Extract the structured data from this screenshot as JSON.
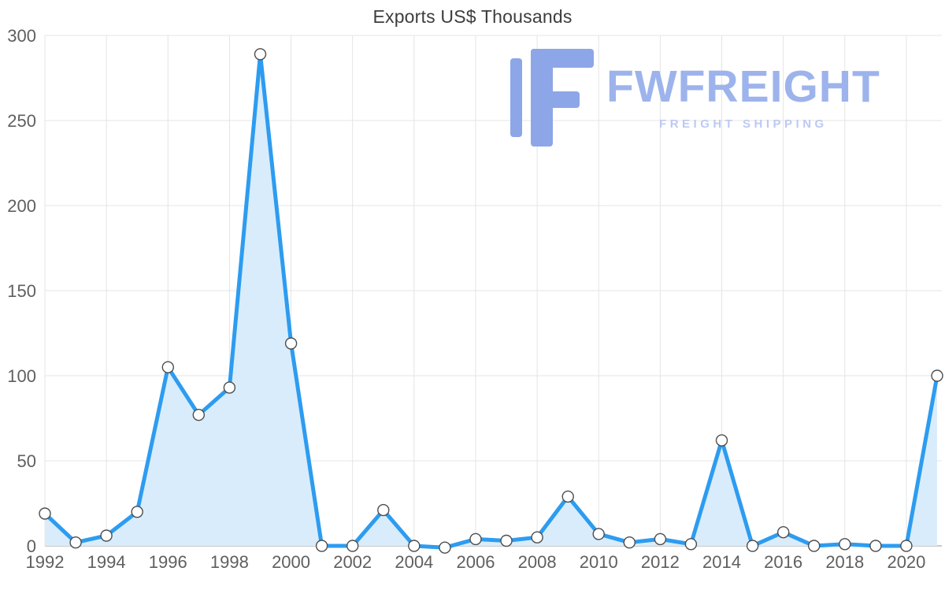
{
  "logo": {
    "name": "FWFREIGHT",
    "tagline": "FREIGHT SHIPPING",
    "glyph_color": "#8da6e8",
    "name_color": "#9db3ec",
    "tagline_color": "#bcc9f3"
  },
  "chart_data": {
    "type": "area",
    "title": "Exports US$ Thousands",
    "x": [
      1992,
      1993,
      1994,
      1995,
      1996,
      1997,
      1998,
      1999,
      2000,
      2001,
      2002,
      2003,
      2004,
      2005,
      2006,
      2007,
      2008,
      2009,
      2010,
      2011,
      2012,
      2013,
      2014,
      2015,
      2016,
      2017,
      2018,
      2019,
      2020,
      2021
    ],
    "series": [
      {
        "name": "Exports US$ Thousands",
        "values": [
          19,
          2,
          6,
          20,
          105,
          77,
          93,
          289,
          119,
          0,
          0,
          21,
          0,
          -1,
          4,
          3,
          5,
          29,
          7,
          2,
          4,
          1,
          62,
          0,
          8,
          0,
          1,
          0,
          0,
          100
        ]
      }
    ],
    "xticks": [
      1992,
      1994,
      1996,
      1998,
      2000,
      2002,
      2004,
      2006,
      2008,
      2010,
      2012,
      2014,
      2016,
      2018,
      2020
    ],
    "yticks": [
      0,
      50,
      100,
      150,
      200,
      250,
      300
    ],
    "ylim": [
      0,
      300
    ],
    "grid": true,
    "legend": "none",
    "colors": {
      "line": "#2d9cf0",
      "fill": "#d9ecfb",
      "marker_fill": "#ffffff",
      "marker_stroke": "#4d4d4d",
      "grid": "#e4e4e4",
      "axis": "#b8b8b8",
      "tick_label": "#5f5f5f"
    }
  }
}
